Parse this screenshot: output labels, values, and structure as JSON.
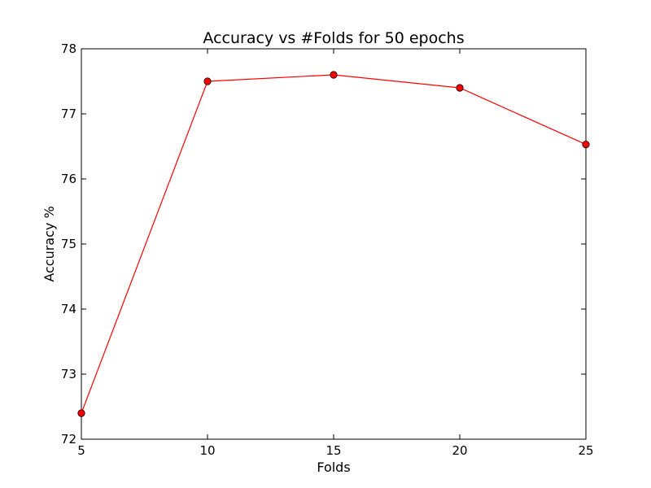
{
  "chart_data": {
    "type": "line",
    "title": "Accuracy vs #Folds for 50 epochs",
    "xlabel": "Folds",
    "ylabel": "Accuracy %",
    "xlim": [
      5,
      25
    ],
    "ylim": [
      72,
      78
    ],
    "x_ticks": [
      "5",
      "10",
      "15",
      "20",
      "25"
    ],
    "y_ticks": [
      "72",
      "73",
      "74",
      "75",
      "76",
      "77",
      "78"
    ],
    "grid": false,
    "legend": "none",
    "series": [
      {
        "color": "#ff0000",
        "marker": "circle",
        "x": [
          5,
          10,
          15,
          20,
          25
        ],
        "y": [
          72.4,
          77.5,
          77.6,
          77.4,
          76.53
        ]
      }
    ]
  }
}
